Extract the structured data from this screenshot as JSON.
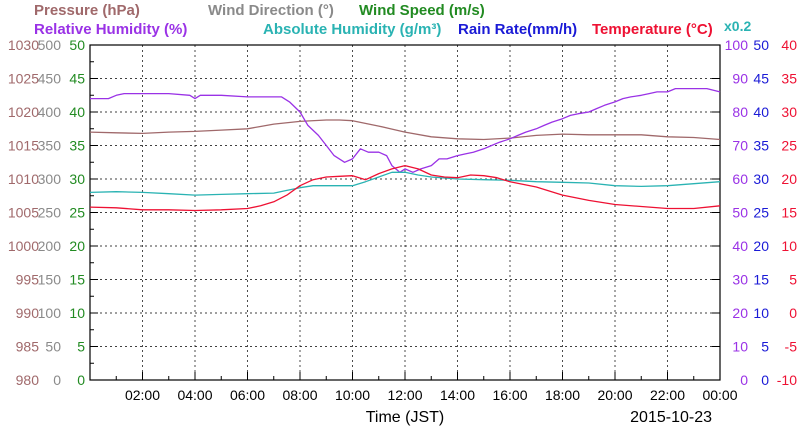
{
  "chart_data": {
    "type": "line",
    "legend_rows": [
      [
        {
          "label": "Pressure (hPa)",
          "color": "#a0696b"
        },
        {
          "label": "Wind Direction (°)",
          "color": "#8a8a8a"
        },
        {
          "label": "Wind Speed (m/s)",
          "color": "#228B22"
        }
      ],
      [
        {
          "label": "Relative Humidity (%)",
          "color": "#9a32e6"
        },
        {
          "label": "Absolute Humidity (g/m³)",
          "color": "#2ab3b3"
        },
        {
          "label": "Rain Rate(mm/h)",
          "color": "#1a1ad6"
        },
        {
          "label": "Temperature (°C)",
          "color": "#ee1133"
        }
      ]
    ],
    "abs_humidity_scale": "x0.2",
    "xlabel": "Time (JST)",
    "date": "2015-10-23",
    "x_ticks": [
      "02:00",
      "04:00",
      "06:00",
      "08:00",
      "10:00",
      "12:00",
      "14:00",
      "16:00",
      "18:00",
      "20:00",
      "22:00",
      "00:00"
    ],
    "x_range_hours": [
      0,
      24
    ],
    "grid": true,
    "left_axes": [
      {
        "name": "Pressure (hPa)",
        "color": "#a0696b",
        "ticks": [
          "980",
          "985",
          "990",
          "995",
          "1000",
          "1005",
          "1010",
          "1015",
          "1020",
          "1025",
          "1030"
        ]
      },
      {
        "name": "Wind Direction (°)",
        "color": "#8a8a8a",
        "ticks": [
          "0",
          "50",
          "100",
          "150",
          "200",
          "250",
          "300",
          "350",
          "400",
          "450",
          "500"
        ]
      },
      {
        "name": "Wind Speed (m/s)",
        "color": "#228B22",
        "ticks": [
          "0",
          "5",
          "10",
          "15",
          "20",
          "25",
          "30",
          "35",
          "40",
          "45",
          "50"
        ]
      }
    ],
    "right_axes": [
      {
        "name": "Relative Humidity (%)",
        "color": "#9a32e6",
        "ticks": [
          "0",
          "10",
          "20",
          "30",
          "40",
          "50",
          "60",
          "70",
          "80",
          "90",
          "100"
        ]
      },
      {
        "name": "Rain Rate(mm/h)",
        "color": "#1a1ad6",
        "ticks": [
          "0",
          "5",
          "10",
          "15",
          "20",
          "25",
          "30",
          "35",
          "40",
          "45",
          "50"
        ]
      },
      {
        "name": "Temperature (°C)",
        "color": "#ee1133",
        "ticks": [
          "-10",
          "-5",
          "0",
          "5",
          "10",
          "15",
          "20",
          "25",
          "30",
          "35",
          "40"
        ]
      }
    ],
    "series": [
      {
        "name": "Pressure (hPa)",
        "color": "#a0696b",
        "axis": "pressure",
        "ylim": [
          980,
          1030
        ],
        "x": [
          0,
          1,
          2,
          3,
          4,
          5,
          6,
          7,
          8,
          9,
          9.5,
          10,
          11,
          12,
          13,
          14,
          15,
          16,
          17,
          18,
          19,
          20,
          21,
          22,
          23,
          24
        ],
        "y": [
          1017.0,
          1016.9,
          1016.8,
          1017.0,
          1017.1,
          1017.3,
          1017.5,
          1018.2,
          1018.6,
          1018.8,
          1018.8,
          1018.7,
          1017.9,
          1017.0,
          1016.3,
          1016.0,
          1015.9,
          1016.1,
          1016.5,
          1016.7,
          1016.6,
          1016.6,
          1016.6,
          1016.3,
          1016.2,
          1015.9
        ]
      },
      {
        "name": "Relative Humidity (%)",
        "color": "#9a32e6",
        "axis": "rh",
        "ylim": [
          0,
          100
        ],
        "x": [
          0,
          0.7,
          1,
          1.3,
          1.6,
          2,
          3,
          3.8,
          4,
          4.2,
          5,
          6,
          7,
          7.3,
          7.6,
          8,
          8.3,
          8.7,
          9,
          9.3,
          9.7,
          10,
          10.3,
          10.6,
          11,
          11.3,
          11.5,
          11.8,
          12,
          12.3,
          12.6,
          13,
          13.3,
          13.6,
          14,
          14.3,
          14.6,
          15,
          15.3,
          15.6,
          16,
          16.3,
          16.6,
          17,
          17.3,
          17.6,
          18,
          18.3,
          18.6,
          19,
          19.3,
          19.6,
          20,
          20.3,
          20.6,
          21,
          21.3,
          21.6,
          22,
          22.3,
          23,
          23.5,
          24
        ],
        "y": [
          84,
          84,
          85,
          85.5,
          85.5,
          85.5,
          85.5,
          85,
          84,
          85,
          85,
          84.5,
          84.5,
          84.5,
          83,
          80,
          76,
          73,
          70,
          67,
          65,
          66,
          69,
          68,
          68,
          67,
          64,
          62,
          63,
          62,
          63,
          64,
          66,
          66,
          67,
          67.5,
          68,
          69,
          70,
          71,
          72,
          73,
          74,
          75,
          76,
          77,
          78,
          79,
          79.5,
          80,
          81,
          82,
          83,
          84,
          84.5,
          85,
          85.5,
          86,
          86,
          87,
          87,
          87,
          86
        ]
      },
      {
        "name": "Absolute Humidity (g/m³)",
        "color": "#2ab3b3",
        "axis": "rain",
        "ylim": [
          0,
          50
        ],
        "x": [
          0,
          1,
          2,
          3,
          4,
          5,
          6,
          7,
          7.5,
          8,
          8.5,
          9,
          10,
          10.5,
          11,
          11.5,
          12,
          12.5,
          13,
          14,
          15,
          16,
          17,
          18,
          19,
          20,
          21,
          22,
          23,
          24
        ],
        "y": [
          28.0,
          28.1,
          28.0,
          27.8,
          27.6,
          27.7,
          27.8,
          27.9,
          28.3,
          28.7,
          29.0,
          29.0,
          29.0,
          29.6,
          30.3,
          31.0,
          31.0,
          30.6,
          30.3,
          30.0,
          29.9,
          29.8,
          29.6,
          29.5,
          29.4,
          29.0,
          28.9,
          29.0,
          29.3,
          29.6
        ]
      },
      {
        "name": "Temperature (°C)",
        "color": "#ee1133",
        "axis": "temp",
        "ylim": [
          -10,
          40
        ],
        "x": [
          0,
          1,
          2,
          3,
          4,
          5,
          6,
          6.5,
          7,
          7.5,
          8,
          8.5,
          9,
          9.5,
          10,
          10.5,
          11,
          11.5,
          12,
          12.5,
          13,
          13.5,
          14,
          14.5,
          15,
          15.5,
          16,
          17,
          18,
          19,
          20,
          21,
          22,
          23,
          24
        ],
        "y": [
          15.8,
          15.7,
          15.4,
          15.4,
          15.3,
          15.4,
          15.6,
          16.0,
          16.6,
          17.6,
          19.0,
          19.9,
          20.3,
          20.4,
          20.5,
          19.9,
          20.8,
          21.5,
          22.0,
          21.5,
          20.6,
          20.3,
          20.2,
          20.6,
          20.5,
          20.2,
          19.6,
          18.8,
          17.6,
          16.8,
          16.2,
          15.9,
          15.6,
          15.6,
          16.0
        ]
      }
    ]
  }
}
